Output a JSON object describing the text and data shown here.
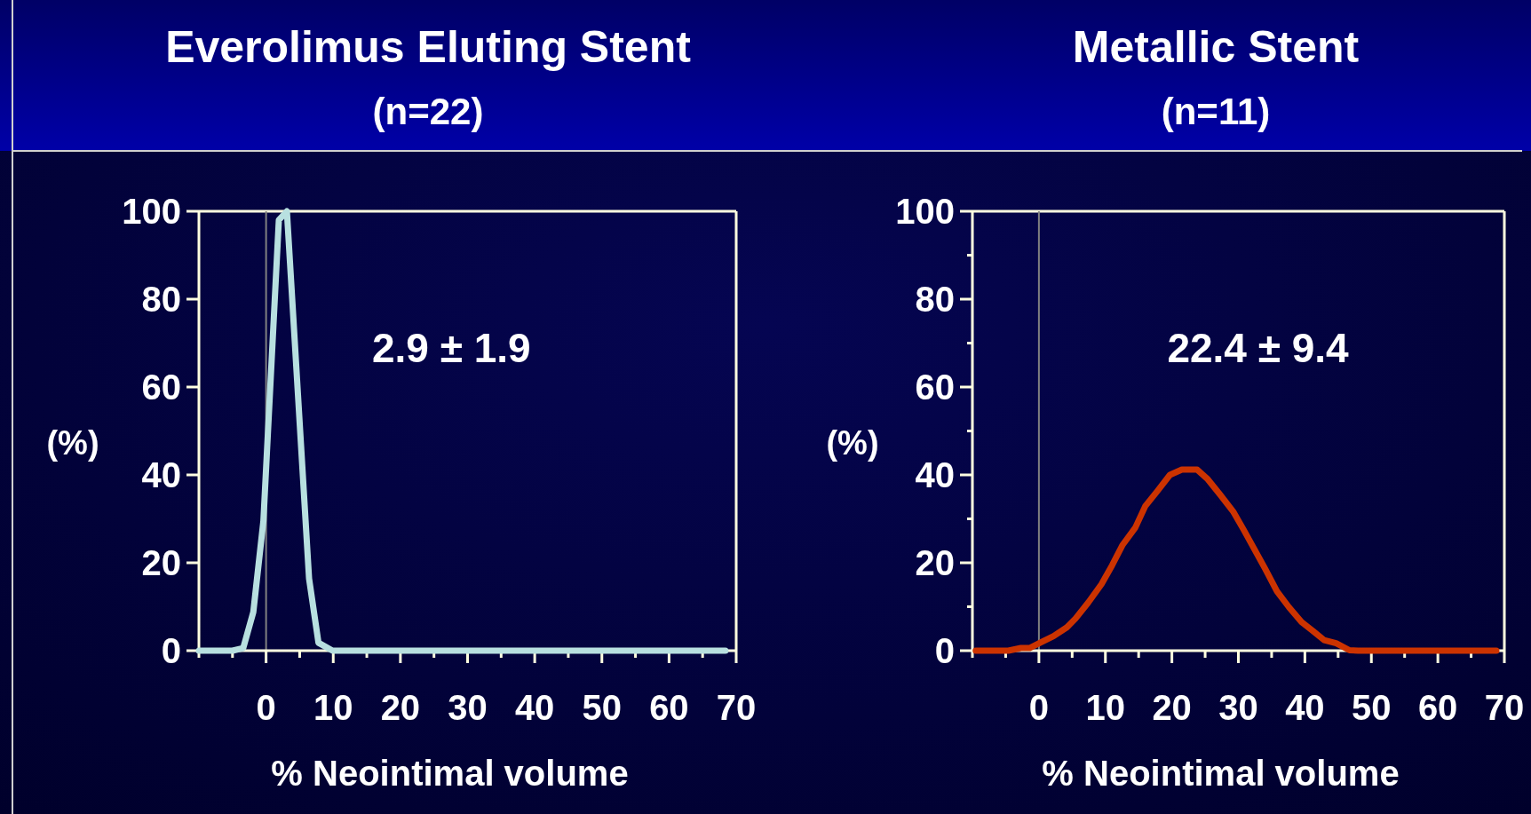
{
  "chart_data": [
    {
      "type": "line",
      "title": "Everolimus Eluting Stent",
      "subtitle": "(n=22)",
      "xlabel": "% Neointimal volume",
      "ylabel": "(%)",
      "annotations": [
        "2.9 ± 1.9"
      ],
      "xlim": [
        -10,
        70
      ],
      "xticks": [
        {
          "value": -10,
          "label": null
        },
        {
          "value": -5,
          "label": null
        },
        0,
        {
          "value": 5,
          "label": null
        },
        10,
        {
          "value": 15,
          "label": null
        },
        20,
        {
          "value": 25,
          "label": null
        },
        30,
        {
          "value": 35,
          "label": null
        },
        40,
        {
          "value": 45,
          "label": null
        },
        50,
        {
          "value": 55,
          "label": null
        },
        60,
        {
          "value": 65,
          "label": null
        },
        70
      ],
      "ylim": [
        0,
        100
      ],
      "yticks": [
        0,
        20,
        40,
        60,
        80,
        100
      ],
      "ref_lines": [
        {
          "axis": "x",
          "value": 0,
          "color": "#808080"
        }
      ],
      "series": [
        {
          "color": "#b8e0e0",
          "x": [
            -10,
            -5,
            -3.4,
            -1.9,
            -0.4,
            1.9,
            3.1,
            6.4,
            7.8,
            9.9,
            68.4
          ],
          "values": [
            0,
            0,
            0.6,
            8.8,
            29.5,
            98,
            100,
            16.4,
            1.8,
            0,
            0
          ]
        }
      ]
    },
    {
      "type": "line",
      "title": "Metallic Stent",
      "subtitle": "(n=11)",
      "xlabel": "% Neointimal volume",
      "ylabel": "(%)",
      "annotations": [
        "22.4 ± 9.4"
      ],
      "xlim": [
        -10,
        70
      ],
      "xticks": [
        {
          "value": -10,
          "label": null
        },
        {
          "value": -5,
          "label": null
        },
        0,
        {
          "value": 5,
          "label": null
        },
        10,
        {
          "value": 15,
          "label": null
        },
        20,
        {
          "value": 25,
          "label": null
        },
        30,
        {
          "value": 35,
          "label": null
        },
        40,
        {
          "value": 45,
          "label": null
        },
        50,
        {
          "value": 55,
          "label": null
        },
        60,
        {
          "value": 65,
          "label": null
        },
        70
      ],
      "ylim": [
        0,
        100
      ],
      "yticks": [
        0,
        {
          "value": 10,
          "label": null
        },
        20,
        {
          "value": 30,
          "label": null
        },
        40,
        {
          "value": 50,
          "label": null
        },
        60,
        {
          "value": 70,
          "label": null
        },
        80,
        {
          "value": 90,
          "label": null
        },
        100
      ],
      "ref_lines": [
        {
          "axis": "x",
          "value": 0,
          "color": "#808080"
        }
      ],
      "series": [
        {
          "color": "#cc3300",
          "x": [
            -9.5,
            -8.2,
            -6.2,
            -4.6,
            -2.7,
            -1.4,
            0.3,
            2.2,
            4.2,
            5.5,
            7.4,
            9.4,
            11,
            12.6,
            14.5,
            16,
            17.8,
            19.7,
            21.5,
            23.8,
            25.4,
            27.2,
            29.2,
            30.8,
            32.4,
            34,
            35.8,
            37.6,
            39.5,
            41.2,
            42.9,
            44.7,
            46.7,
            48,
            49.6,
            51.6,
            68.8
          ],
          "values": [
            0,
            0,
            0,
            0,
            0.6,
            0.6,
            1.9,
            3.3,
            5.3,
            7.3,
            10.9,
            15.1,
            19.4,
            24.1,
            28,
            32.9,
            36.3,
            40,
            41.2,
            41.2,
            39,
            35.6,
            31.7,
            27.5,
            23.1,
            18.7,
            13.5,
            9.9,
            6.5,
            4.5,
            2.4,
            1.7,
            0.1,
            0,
            0,
            0,
            0
          ]
        }
      ]
    }
  ]
}
